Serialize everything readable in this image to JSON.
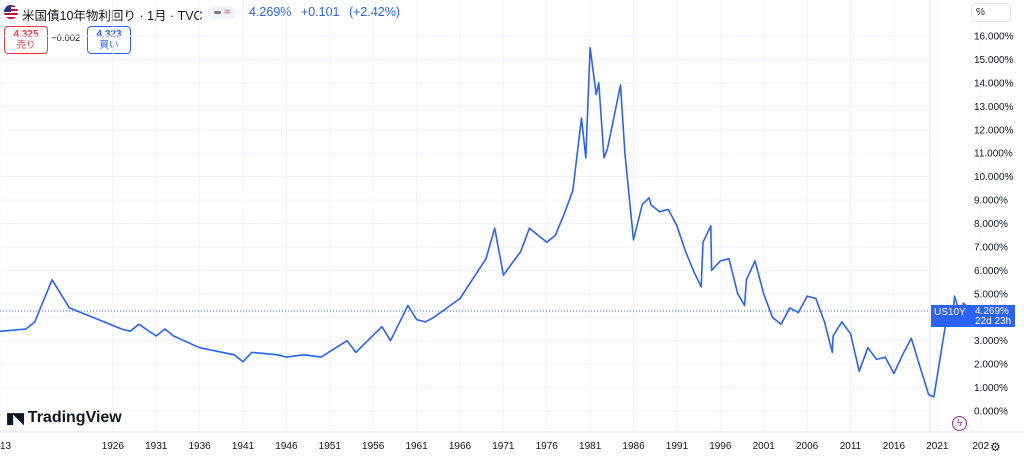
{
  "header": {
    "title": "米国債10年物利回り · 1月 · TVC",
    "last": "4.269%",
    "change": "+0.101",
    "change_pct": "(+2.42%)",
    "unit_button": "%"
  },
  "trade": {
    "sell_price": "4.325",
    "sell_label": "売り",
    "spread": "−0.002",
    "buy_price": "4.323",
    "buy_label": "買い"
  },
  "price_label": {
    "symbol": "US10Y",
    "value": "4.269%",
    "countdown": "22d 23h"
  },
  "branding": {
    "logo": "TradingView"
  },
  "colors": {
    "line": "#2962ff",
    "sell": "#f23645",
    "buy": "#2962ff",
    "grid": "#f0f3fa"
  },
  "chart_data": {
    "type": "line",
    "series": [
      {
        "name": "US10Y",
        "x": [
          1913,
          1916,
          1917,
          1918,
          1919,
          1921,
          1923,
          1925,
          1927,
          1928,
          1929,
          1931,
          1932,
          1933,
          1936,
          1940,
          1941,
          1942,
          1945,
          1946,
          1948,
          1950,
          1953,
          1954,
          1957,
          1958,
          1960,
          1961,
          1962,
          1963,
          1966,
          1969,
          1970,
          1971,
          1972,
          1973,
          1974,
          1976,
          1977,
          1978,
          1979,
          1980,
          1980.5,
          1981,
          1981.7,
          1982,
          1982.6,
          1983,
          1984.5,
          1985,
          1986,
          1987,
          1987.8,
          1988,
          1989,
          1990,
          1991,
          1992,
          1993,
          1993.8,
          1994,
          1994.9,
          1995,
          1996,
          1997,
          1998,
          1998.8,
          1999,
          2000,
          2001,
          2002,
          2003,
          2004,
          2005,
          2006,
          2007,
          2008,
          2008.9,
          2009,
          2010,
          2011,
          2012,
          2013,
          2014,
          2015,
          2016,
          2017,
          2018,
          2019,
          2020,
          2020.6,
          2021,
          2022,
          2022.8,
          2023,
          2023.8,
          2024,
          2025
        ],
        "values": [
          3.4,
          3.5,
          3.8,
          4.7,
          5.6,
          4.4,
          4.1,
          3.8,
          3.5,
          3.4,
          3.7,
          3.2,
          3.5,
          3.2,
          2.7,
          2.4,
          2.1,
          2.5,
          2.4,
          2.3,
          2.4,
          2.3,
          3.0,
          2.5,
          3.6,
          3.0,
          4.5,
          3.9,
          3.8,
          4.0,
          4.8,
          6.5,
          7.8,
          5.8,
          6.3,
          6.8,
          7.8,
          7.2,
          7.5,
          8.4,
          9.4,
          12.5,
          10.8,
          15.5,
          13.5,
          14.0,
          10.8,
          11.2,
          13.9,
          11.0,
          7.3,
          8.8,
          9.1,
          8.8,
          8.5,
          8.6,
          7.9,
          6.8,
          5.9,
          5.3,
          7.2,
          7.9,
          6.0,
          6.4,
          6.5,
          5.0,
          4.5,
          5.6,
          6.4,
          5.0,
          4.0,
          3.7,
          4.4,
          4.2,
          4.9,
          4.8,
          3.8,
          2.5,
          3.2,
          3.8,
          3.3,
          1.7,
          2.7,
          2.2,
          2.3,
          1.6,
          2.4,
          3.1,
          1.9,
          0.7,
          0.6,
          1.5,
          3.8,
          4.1,
          4.9,
          3.9,
          4.6,
          4.269
        ]
      }
    ],
    "xticks": [
      "13",
      "1926",
      "1931",
      "1936",
      "1941",
      "1946",
      "1951",
      "1956",
      "1961",
      "1966",
      "1971",
      "1976",
      "1981",
      "1986",
      "1991",
      "1996",
      "2001",
      "2006",
      "2011",
      "2016",
      "2021",
      "202"
    ],
    "yticks": [
      "0.000%",
      "1.000%",
      "2.000%",
      "3.000%",
      "4.000%",
      "5.000%",
      "6.000%",
      "7.000%",
      "8.000%",
      "9.000%",
      "10.000%",
      "11.000%",
      "12.000%",
      "13.000%",
      "14.000%",
      "15.000%",
      "16.000%"
    ],
    "ylim": [
      0,
      16
    ],
    "xlim": [
      1913,
      2025
    ]
  }
}
